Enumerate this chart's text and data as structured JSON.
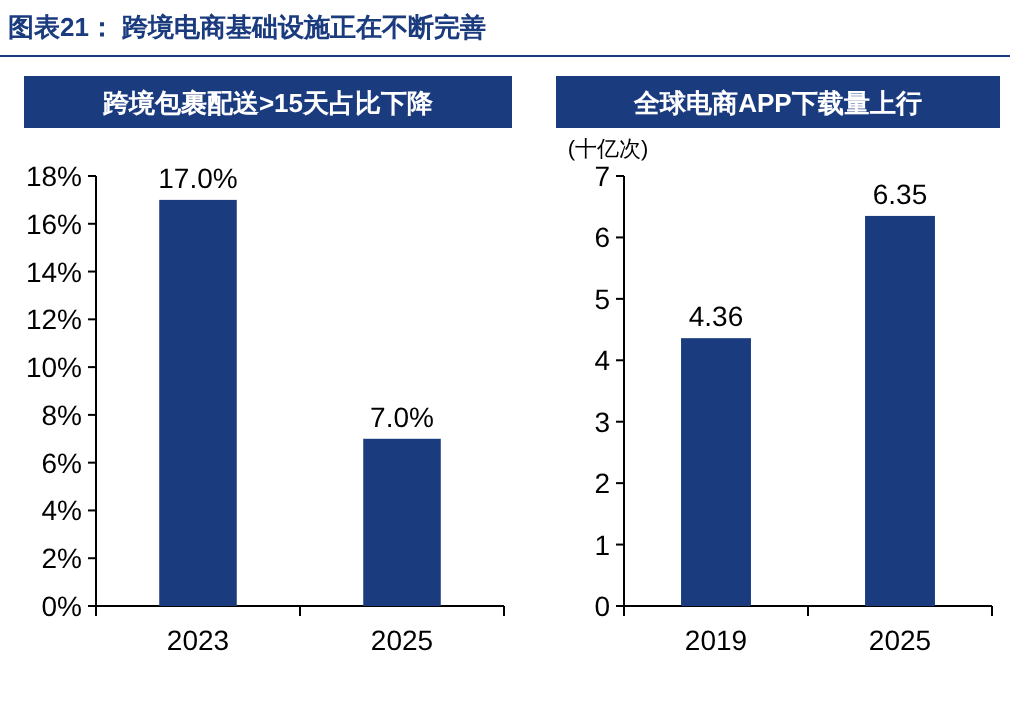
{
  "chart_data": [
    {
      "type": "bar",
      "title": "跨境包裹配送>15天占比下降",
      "annotations": [
        "图表21： 跨境电商基础设施正在不断完善"
      ],
      "categories": [
        "2023",
        "2025"
      ],
      "values": [
        17.0,
        7.0
      ],
      "color": "#1b3b7f",
      "value_labels": [
        "17.0%",
        "7.0%"
      ],
      "ylim": [
        0,
        18
      ],
      "yticks": [
        {
          "value": 0,
          "label": "0%"
        },
        {
          "value": 2,
          "label": "2%"
        },
        {
          "value": 4,
          "label": "4%"
        },
        {
          "value": 6,
          "label": "6%"
        },
        {
          "value": 8,
          "label": "8%"
        },
        {
          "value": 10,
          "label": "10%"
        },
        {
          "value": 12,
          "label": "12%"
        },
        {
          "value": 14,
          "label": "14%"
        },
        {
          "value": 16,
          "label": "16%"
        },
        {
          "value": 18,
          "label": "18%"
        }
      ],
      "grid": false
    },
    {
      "type": "bar",
      "title": "全球电商APP下载量上行",
      "ylabel": "(十亿次)",
      "categories": [
        "2019",
        "2025"
      ],
      "values": [
        4.36,
        6.35
      ],
      "color": "#1b3b7f",
      "data_labels": true,
      "ylim": [
        0,
        7
      ],
      "yticks": [
        0,
        1,
        2,
        3,
        4,
        5,
        6,
        7
      ],
      "grid": false
    }
  ]
}
